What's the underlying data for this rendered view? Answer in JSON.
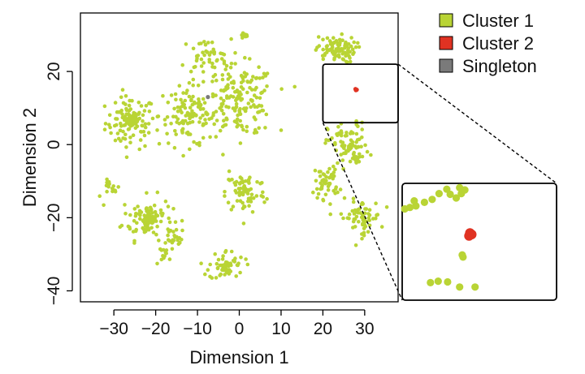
{
  "chart_data": {
    "type": "scatter",
    "title": "",
    "xlabel": "Dimension 1",
    "ylabel": "Dimension 2",
    "xlim": [
      -38,
      38
    ],
    "ylim": [
      -43,
      36
    ],
    "x_ticks": [
      -30,
      -20,
      -10,
      0,
      10,
      20,
      30
    ],
    "x_tick_labels": [
      "−30",
      "−20",
      "−10",
      "0",
      "10",
      "20",
      "30"
    ],
    "y_ticks": [
      -40,
      -20,
      0,
      20
    ],
    "y_tick_labels": [
      "−40",
      "−20",
      "0",
      "20"
    ],
    "grid": false,
    "legend_position": "top-right",
    "colors": {
      "Cluster 1": "#b9d435",
      "Cluster 2": "#e03222",
      "Singleton": "#7a7a7a"
    },
    "series": [
      {
        "name": "Cluster 1",
        "color": "#b9d435",
        "groups": [
          {
            "center": [
              -26,
              6
            ],
            "spread": [
              5,
              6
            ],
            "count": 95
          },
          {
            "center": [
              -26,
              6.5
            ],
            "spread": [
              1.4,
              1.4
            ],
            "count": 45
          },
          {
            "center": [
              -22,
              -20
            ],
            "spread": [
              5,
              5
            ],
            "count": 85
          },
          {
            "center": [
              -21.5,
              -20.5
            ],
            "spread": [
              1.3,
              1.3
            ],
            "count": 40
          },
          {
            "center": [
              -12,
              8
            ],
            "spread": [
              6,
              7
            ],
            "count": 110
          },
          {
            "center": [
              0,
              12
            ],
            "spread": [
              7,
              8
            ],
            "count": 170
          },
          {
            "center": [
              -8,
              24
            ],
            "spread": [
              5,
              4
            ],
            "count": 45
          },
          {
            "center": [
              1.5,
              -13
            ],
            "spread": [
              4,
              5
            ],
            "count": 75
          },
          {
            "center": [
              -3,
              -33
            ],
            "spread": [
              3.5,
              3.5
            ],
            "count": 50
          },
          {
            "center": [
              -3.5,
              -33.5
            ],
            "spread": [
              0.7,
              0.7
            ],
            "count": 12
          },
          {
            "center": [
              23,
              26
            ],
            "spread": [
              4,
              3
            ],
            "count": 90
          },
          {
            "center": [
              26,
              0
            ],
            "spread": [
              4,
              5
            ],
            "count": 75
          },
          {
            "center": [
              28,
              -4
            ],
            "spread": [
              1,
              1
            ],
            "count": 12
          },
          {
            "center": [
              21,
              -10
            ],
            "spread": [
              2.5,
              4
            ],
            "count": 50
          },
          {
            "center": [
              29,
              -20
            ],
            "spread": [
              4,
              4
            ],
            "count": 65
          },
          {
            "center": [
              1,
              30
            ],
            "spread": [
              0.8,
              0.5
            ],
            "count": 10
          },
          {
            "center": [
              -15,
              -26
            ],
            "spread": [
              2,
              3
            ],
            "count": 20
          },
          {
            "center": [
              -18,
              -30
            ],
            "spread": [
              2,
              1.5
            ],
            "count": 12
          },
          {
            "center": [
              -30,
              -12
            ],
            "spread": [
              2,
              2
            ],
            "count": 15
          }
        ]
      },
      {
        "name": "Cluster 2",
        "color": "#e03222",
        "points": [
          [
            27.8,
            15.2
          ],
          [
            28.1,
            15.0
          ],
          [
            27.9,
            14.9
          ]
        ]
      },
      {
        "name": "Singleton",
        "color": "#7a7a7a",
        "points": [
          [
            -7.5,
            13
          ]
        ]
      }
    ],
    "inset": {
      "region": {
        "xlim": [
          20,
          38
        ],
        "ylim": [
          6,
          22
        ]
      },
      "sample_points": [
        {
          "x": 27.9,
          "y": 15.2,
          "series": "Cluster 2"
        },
        {
          "x": 28.1,
          "y": 15.0,
          "series": "Cluster 2"
        },
        {
          "x": 27.8,
          "y": 14.8,
          "series": "Cluster 2"
        },
        {
          "x": 20.3,
          "y": 18.5,
          "series": "Cluster 1"
        },
        {
          "x": 20.9,
          "y": 18.7,
          "series": "Cluster 1"
        },
        {
          "x": 21.6,
          "y": 18.9,
          "series": "Cluster 1"
        },
        {
          "x": 22.6,
          "y": 19.4,
          "series": "Cluster 1"
        },
        {
          "x": 23.5,
          "y": 19.8,
          "series": "Cluster 1"
        },
        {
          "x": 24.3,
          "y": 20.6,
          "series": "Cluster 1"
        },
        {
          "x": 25.6,
          "y": 20.5,
          "series": "Cluster 1"
        },
        {
          "x": 26.3,
          "y": 20.0,
          "series": "Cluster 1"
        },
        {
          "x": 26.9,
          "y": 20.6,
          "series": "Cluster 1"
        },
        {
          "x": 27.3,
          "y": 21.1,
          "series": "Cluster 1"
        },
        {
          "x": 26.7,
          "y": 21.4,
          "series": "Cluster 1"
        },
        {
          "x": 25.2,
          "y": 21.2,
          "series": "Cluster 1"
        },
        {
          "x": 21.4,
          "y": 19.6,
          "series": "Cluster 1"
        },
        {
          "x": 27.0,
          "y": 12.2,
          "series": "Cluster 1"
        },
        {
          "x": 27.1,
          "y": 11.9,
          "series": "Cluster 1"
        },
        {
          "x": 23.3,
          "y": 8.4,
          "series": "Cluster 1"
        },
        {
          "x": 24.2,
          "y": 8.6,
          "series": "Cluster 1"
        },
        {
          "x": 25.3,
          "y": 8.5,
          "series": "Cluster 1"
        },
        {
          "x": 26.7,
          "y": 7.8,
          "series": "Cluster 1"
        },
        {
          "x": 28.5,
          "y": 7.8,
          "series": "Cluster 1"
        }
      ]
    }
  }
}
